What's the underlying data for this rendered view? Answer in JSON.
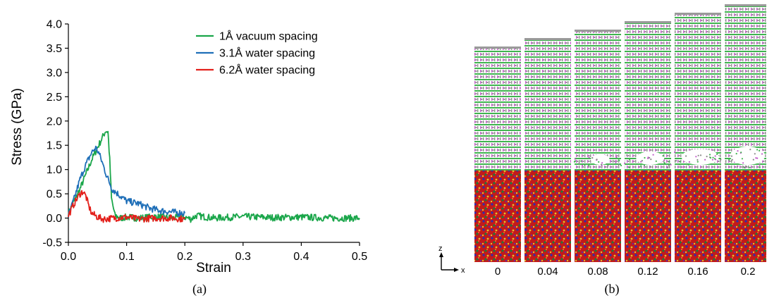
{
  "chart_data": {
    "type": "line",
    "xlabel": "Strain",
    "ylabel": "Stress (GPa)",
    "xlim": [
      0.0,
      0.5
    ],
    "ylim": [
      -0.5,
      4.0
    ],
    "xticks": [
      "0.0",
      "0.1",
      "0.2",
      "0.3",
      "0.4",
      "0.5"
    ],
    "yticks": [
      "-0.5",
      "0.0",
      "0.5",
      "1.0",
      "1.5",
      "2.0",
      "2.5",
      "3.0",
      "3.5",
      "4.0"
    ],
    "legend_position": "top-right",
    "grid": false,
    "series": [
      {
        "name": "1Å vacuum spacing",
        "color": "#1aa64a",
        "x": [
          0.0,
          0.01,
          0.02,
          0.03,
          0.04,
          0.05,
          0.058,
          0.064,
          0.068,
          0.071,
          0.074,
          0.08,
          0.09,
          0.1,
          0.12,
          0.15,
          0.18,
          0.2,
          0.21,
          0.22,
          0.25,
          0.3,
          0.35,
          0.4,
          0.45,
          0.5
        ],
        "y": [
          0.1,
          0.35,
          0.6,
          0.9,
          1.2,
          1.45,
          1.65,
          1.8,
          1.78,
          1.2,
          0.4,
          0.05,
          0.0,
          0.02,
          0.0,
          0.03,
          0.0,
          0.02,
          -0.02,
          0.05,
          0.0,
          0.03,
          0.01,
          0.02,
          0.0,
          0.0
        ]
      },
      {
        "name": "3.1Å water spacing",
        "color": "#1f6fb8",
        "x": [
          0.0,
          0.01,
          0.02,
          0.03,
          0.04,
          0.047,
          0.052,
          0.058,
          0.065,
          0.07,
          0.075,
          0.08,
          0.09,
          0.1,
          0.12,
          0.14,
          0.16,
          0.18,
          0.2
        ],
        "y": [
          0.05,
          0.4,
          0.8,
          1.1,
          1.35,
          1.45,
          1.35,
          1.15,
          0.9,
          0.75,
          0.6,
          0.55,
          0.45,
          0.35,
          0.3,
          0.2,
          0.15,
          0.12,
          0.1
        ]
      },
      {
        "name": "6.2Å water spacing",
        "color": "#e3201b",
        "x": [
          0.0,
          0.01,
          0.02,
          0.025,
          0.03,
          0.035,
          0.04,
          0.05,
          0.06,
          0.08,
          0.1,
          0.12,
          0.15,
          0.18,
          0.2
        ],
        "y": [
          0.05,
          0.3,
          0.5,
          0.55,
          0.45,
          0.25,
          0.1,
          0.02,
          -0.02,
          0.0,
          0.02,
          -0.02,
          0.0,
          0.0,
          -0.02
        ]
      }
    ]
  },
  "panel_a_label": "(a)",
  "panel_b_label": "(b)",
  "snapshot_axes": {
    "vertical": "z",
    "horizontal": "x"
  },
  "snapshots": [
    {
      "strain_label": "0",
      "film_top": 0.0
    },
    {
      "strain_label": "0.04",
      "film_top": 0.04
    },
    {
      "strain_label": "0.08",
      "film_top": 0.08
    },
    {
      "strain_label": "0.12",
      "film_top": 0.12
    },
    {
      "strain_label": "0.16",
      "film_top": 0.16
    },
    {
      "strain_label": "0.2",
      "film_top": 0.2
    }
  ],
  "colors": {
    "green_atoms": "#3fb34f",
    "purple_atoms": "#c05ac8",
    "gray_atoms": "#8a8a8a",
    "red_atoms": "#d41e1e",
    "blue_atoms": "#2233bb",
    "yellow_atoms": "#e6c12a"
  }
}
